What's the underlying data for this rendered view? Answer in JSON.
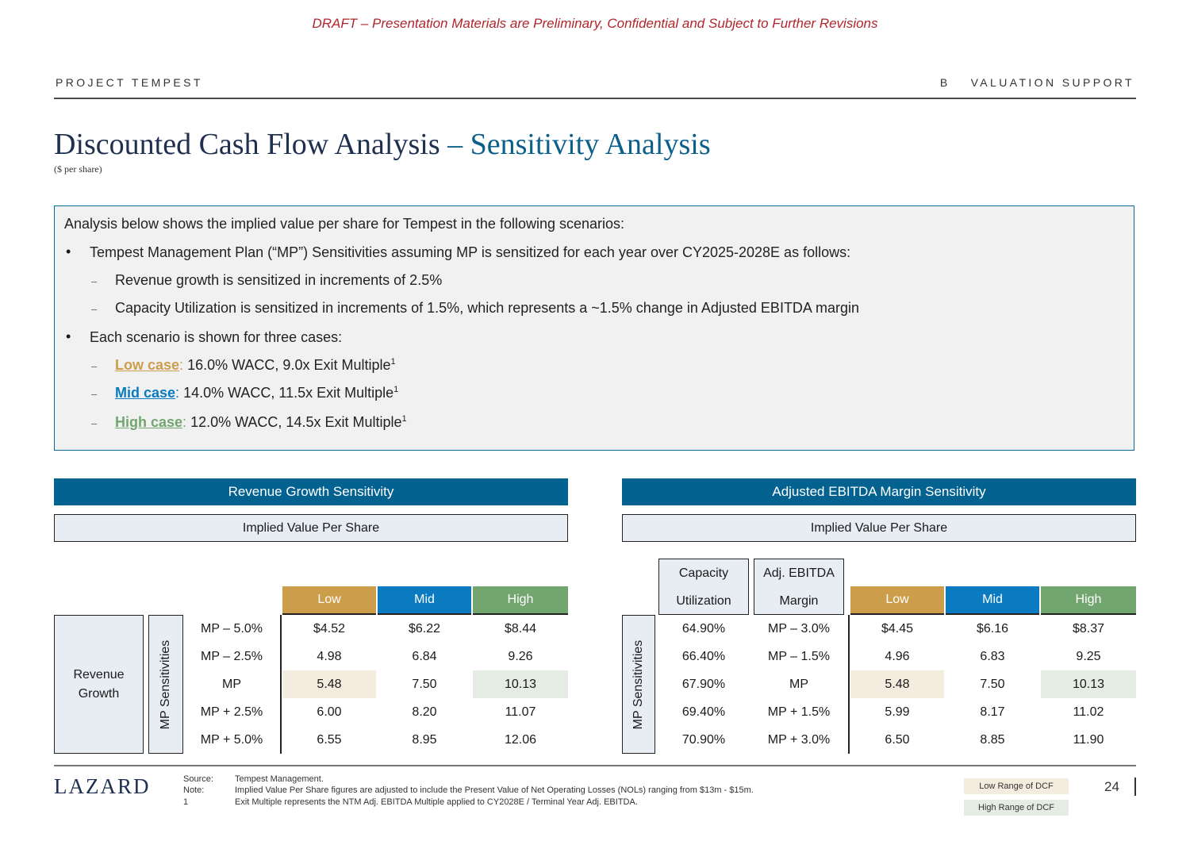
{
  "draft": "DRAFT – Presentation Materials are Preliminary, Confidential and Subject to Further Revisions",
  "header": {
    "left": "PROJECT TEMPEST",
    "section_letter": "B",
    "section_title": "VALUATION SUPPORT"
  },
  "title": {
    "main": "Discounted Cash Flow Analysis",
    "accent": "– Sensitivity Analysis",
    "subtitle": "($ per share)"
  },
  "intro": {
    "line1": "Analysis below shows the implied value per share for Tempest in the following scenarios:",
    "bullet1": "Tempest Management Plan (“MP”) Sensitivities assuming MP is sensitized for each year over CY2025-2028E as follows:",
    "sub1": "Revenue growth is sensitized in increments of 2.5%",
    "sub2": "Capacity Utilization is sensitized in increments of 1.5%, which represents a ~1.5% change in Adjusted EBITDA margin",
    "bullet2": "Each scenario is shown for three cases:",
    "cases": [
      {
        "label": "Low case",
        "text": " 16.0% WACC, 9.0x Exit Multiple",
        "sup": "1"
      },
      {
        "label": "Mid case",
        "text": " 14.0% WACC, 11.5x Exit Multiple",
        "sup": "1"
      },
      {
        "label": "High case",
        "text": " 12.0% WACC, 14.5x Exit Multiple",
        "sup": "1"
      }
    ],
    "colon": ":",
    "bullet_char": "•",
    "dash_char": "–"
  },
  "colors": {
    "low": "#cc9d4b",
    "mid": "#0a7bc1",
    "high": "#73a56f",
    "navy": "#03628f"
  },
  "left_table": {
    "title": "Revenue Growth Sensitivity",
    "subtitle": "Implied Value Per Share",
    "group_label_1": "Revenue",
    "group_label_2": "Growth",
    "vertical_label": "MP Sensitivities",
    "columns": [
      "Low",
      "Mid",
      "High"
    ],
    "rows": [
      {
        "label": "MP – 5.0%",
        "values": [
          "$4.52",
          "$6.22",
          "$8.44"
        ]
      },
      {
        "label": "MP – 2.5%",
        "values": [
          "4.98",
          "6.84",
          "9.26"
        ]
      },
      {
        "label": "MP",
        "values": [
          "5.48",
          "7.50",
          "10.13"
        ]
      },
      {
        "label": "MP + 2.5%",
        "values": [
          "6.00",
          "8.20",
          "11.07"
        ]
      },
      {
        "label": "MP + 5.0%",
        "values": [
          "6.55",
          "8.95",
          "12.06"
        ]
      }
    ]
  },
  "right_table": {
    "title": "Adjusted EBITDA Margin Sensitivity",
    "subtitle": "Implied Value Per Share",
    "vertical_label": "MP Sensitivities",
    "cap_header_1": "Capacity",
    "cap_header_2": "Utilization",
    "margin_header_1": "Adj. EBITDA",
    "margin_header_2": "Margin",
    "columns": [
      "Low",
      "Mid",
      "High"
    ],
    "rows": [
      {
        "cap": "64.90%",
        "label": "MP – 3.0%",
        "values": [
          "$4.45",
          "$6.16",
          "$8.37"
        ]
      },
      {
        "cap": "66.40%",
        "label": "MP – 1.5%",
        "values": [
          "4.96",
          "6.83",
          "9.25"
        ]
      },
      {
        "cap": "67.90%",
        "label": "MP",
        "values": [
          "5.48",
          "7.50",
          "10.13"
        ]
      },
      {
        "cap": "69.40%",
        "label": "MP + 1.5%",
        "values": [
          "5.99",
          "8.17",
          "11.02"
        ]
      },
      {
        "cap": "70.90%",
        "label": "MP + 3.0%",
        "values": [
          "6.50",
          "8.85",
          "11.90"
        ]
      }
    ]
  },
  "footer": {
    "logo": "LAZARD",
    "notes": [
      {
        "key": "Source:",
        "text": "Tempest Management."
      },
      {
        "key": "Note:",
        "text": "Implied Value Per Share figures are adjusted to include the Present Value of Net Operating Losses (NOLs) ranging from $13m - $15m."
      },
      {
        "key": "1",
        "text": "Exit Multiple represents the NTM Adj. EBITDA Multiple applied to CY2028E / Terminal Year Adj. EBITDA."
      }
    ],
    "legend_low": "Low Range of DCF",
    "legend_high": "High Range of DCF",
    "page_number": "24"
  }
}
